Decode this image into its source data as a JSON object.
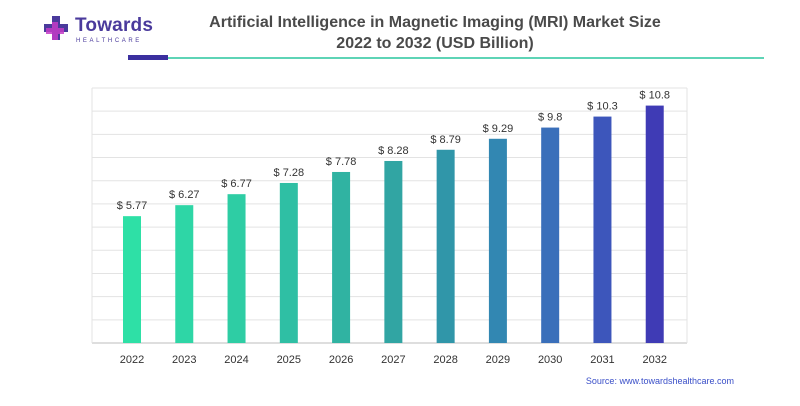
{
  "brand": {
    "name": "Towards",
    "sub": "HEALTHCARE",
    "colors": {
      "primary": "#4a3a9c",
      "accent": "#c43cc7",
      "teal": "#5ed4b6"
    }
  },
  "title": {
    "line1": "Artificial Intelligence in Magnetic Imaging (MRI) Market Size",
    "line2": "2022 to 2032 (USD Billion)"
  },
  "source": "Source: www.towardshealthcare.com",
  "chart_data": {
    "type": "bar",
    "categories": [
      "2022",
      "2023",
      "2024",
      "2025",
      "2026",
      "2027",
      "2028",
      "2029",
      "2030",
      "2031",
      "2032"
    ],
    "values": [
      5.77,
      6.27,
      6.77,
      7.28,
      7.78,
      8.28,
      8.79,
      9.29,
      9.8,
      10.3,
      10.8
    ],
    "labels": [
      "$ 5.77",
      "$ 6.27",
      "$ 6.77",
      "$ 7.28",
      "$ 7.78",
      "$ 8.28",
      "$ 8.79",
      "$ 9.29",
      "$ 9.8",
      "$ 10.3",
      "$ 10.8"
    ],
    "colors": [
      "#2ee0a6",
      "#2ed6a6",
      "#2ecda4",
      "#2fbfa4",
      "#30b3a2",
      "#31a5a3",
      "#3096a9",
      "#3287b2",
      "#3a6fba",
      "#3d56bb",
      "#3f3bb5"
    ],
    "ylim": [
      0,
      11.6
    ],
    "grid": true
  }
}
